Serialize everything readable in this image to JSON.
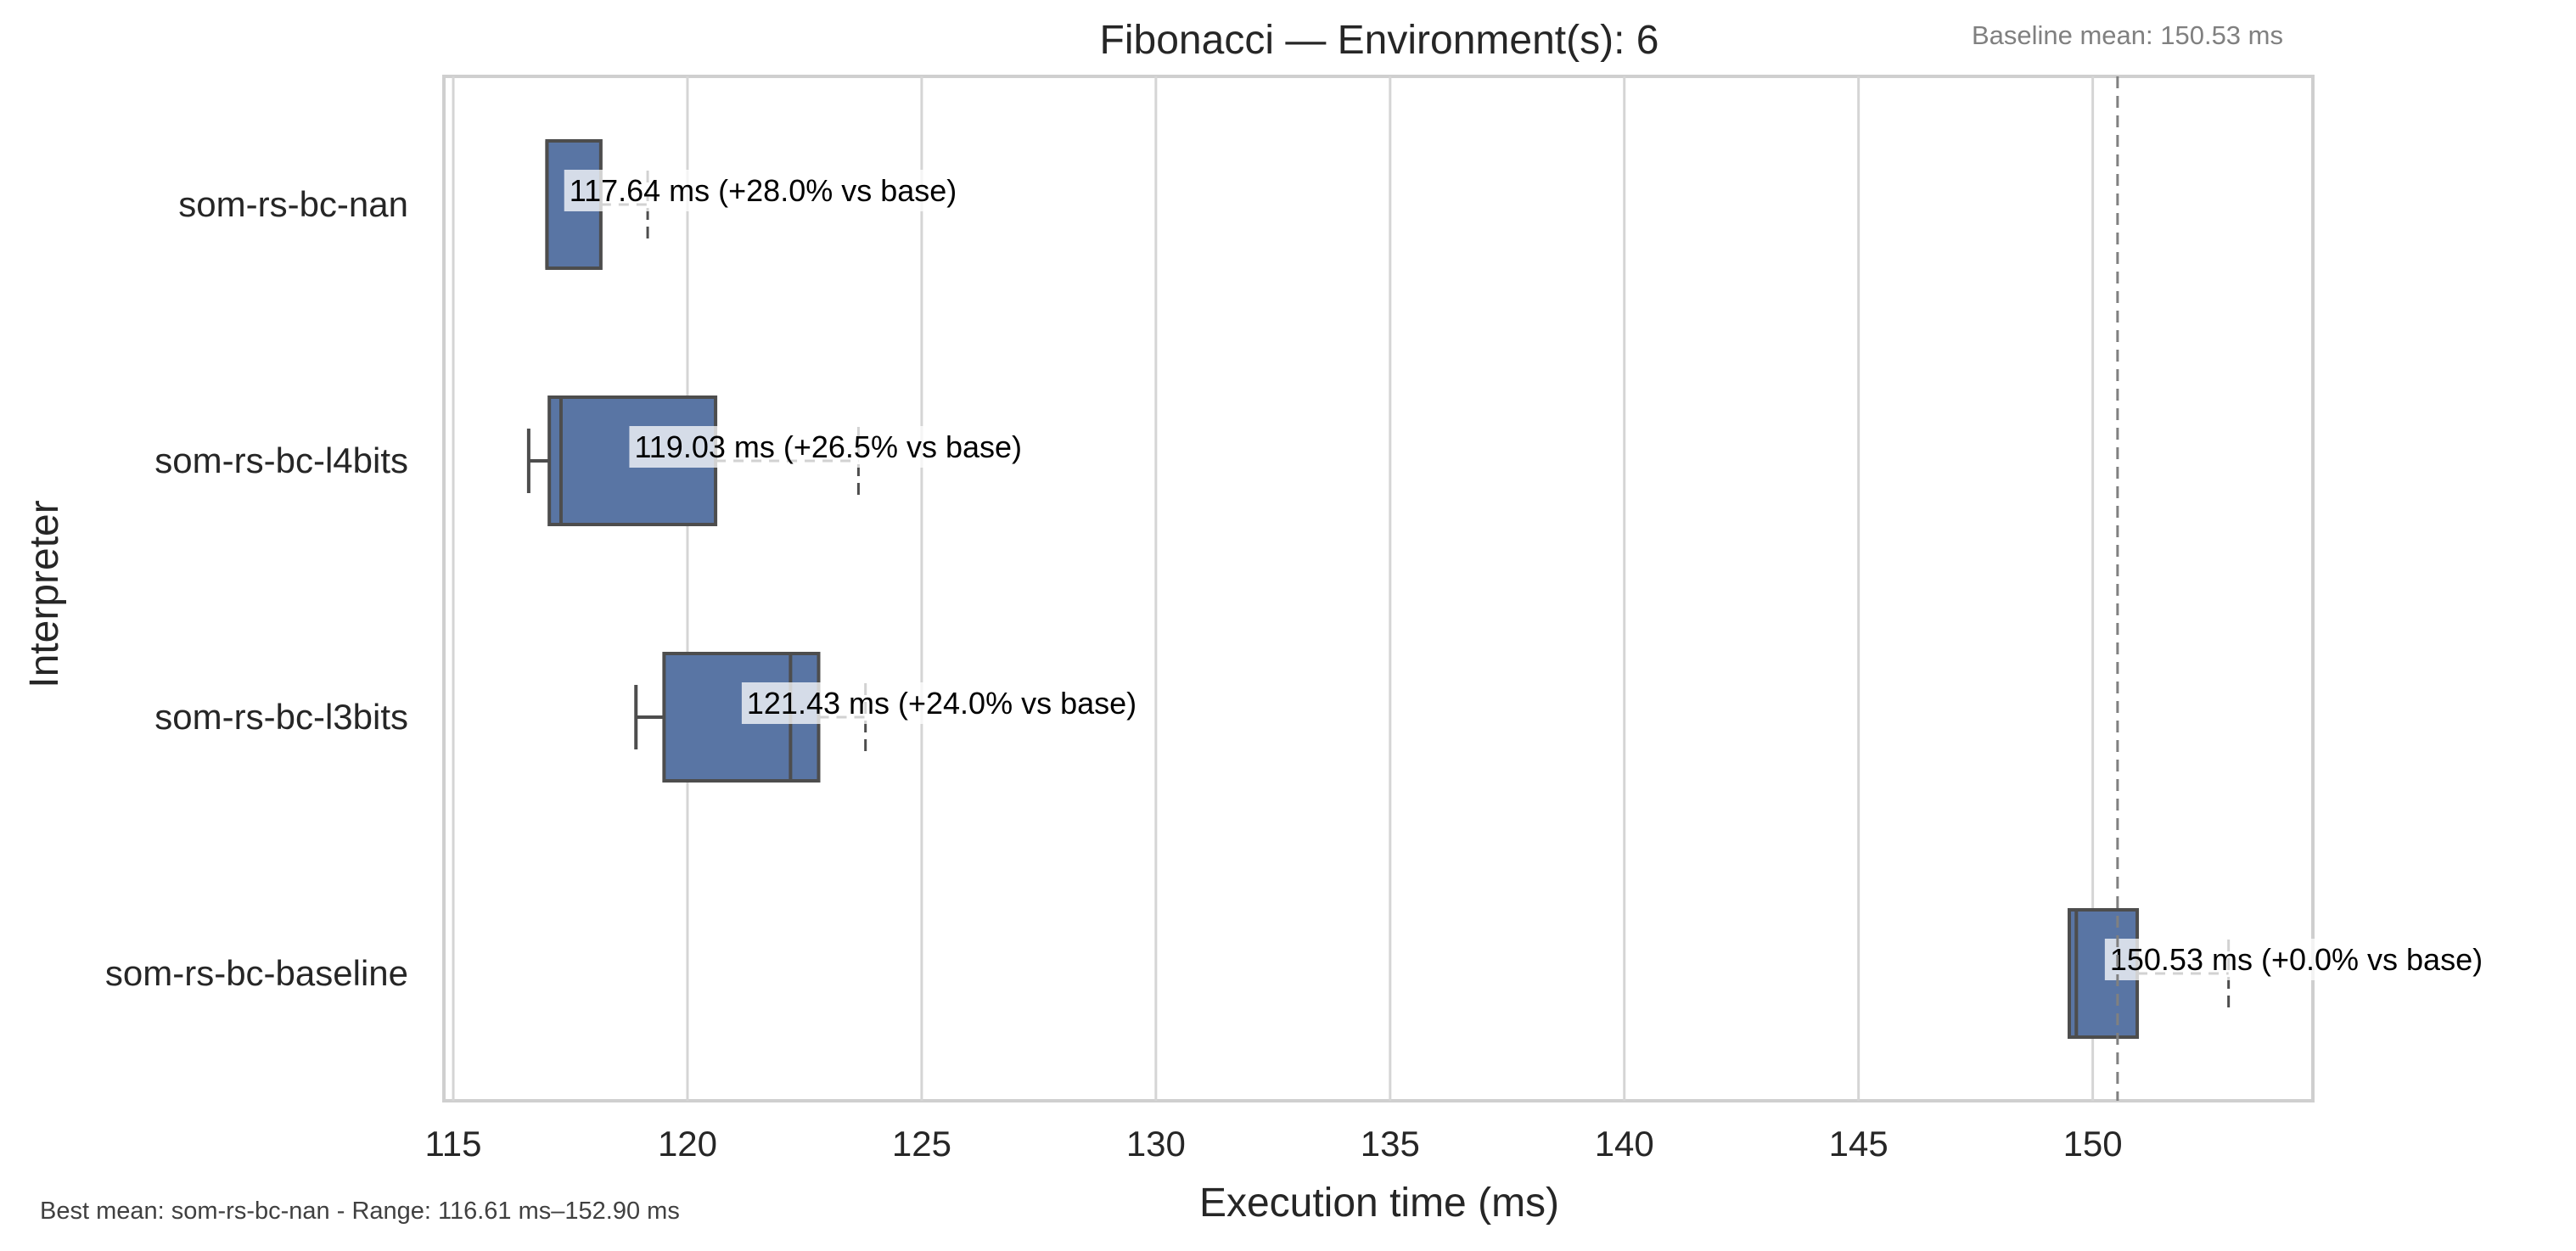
{
  "chart_data": {
    "type": "box",
    "title": "Fibonacci — Environment(s): 6",
    "baseline_note": "Baseline mean: 150.53 ms",
    "footer": "Best mean: som-rs-bc-nan - Range: 116.61 ms–152.90 ms",
    "xlabel": "Execution time (ms)",
    "ylabel": "Interpreter",
    "xlim": [
      114.8,
      154.7
    ],
    "xticks": [
      115,
      120,
      125,
      130,
      135,
      140,
      145,
      150
    ],
    "xtick_labels": [
      "115",
      "120",
      "125",
      "130",
      "135",
      "140",
      "145",
      "150"
    ],
    "grid": true,
    "baseline_mean": 150.53,
    "series": [
      {
        "name": "som-rs-bc-nan",
        "min": 117.0,
        "q1": 117.0,
        "median": 117.0,
        "q3": 118.15,
        "max": 118.15,
        "mean": 117.64,
        "mean_cap": 119.15,
        "annotation": "117.64 ms  (+28.0% vs base)"
      },
      {
        "name": "som-rs-bc-l4bits",
        "min": 116.61,
        "q1": 117.05,
        "median": 117.3,
        "q3": 120.6,
        "max": 120.6,
        "mean": 119.03,
        "mean_cap": 123.65,
        "annotation": "119.03 ms  (+26.5% vs base)"
      },
      {
        "name": "som-rs-bc-l3bits",
        "min": 118.9,
        "q1": 119.5,
        "median": 122.2,
        "q3": 122.8,
        "max": 122.8,
        "mean": 121.43,
        "mean_cap": 123.8,
        "annotation": "121.43 ms  (+24.0% vs base)"
      },
      {
        "name": "som-rs-bc-baseline",
        "min": 149.5,
        "q1": 149.5,
        "median": 149.65,
        "q3": 150.95,
        "max": 150.95,
        "mean": 150.53,
        "mean_cap": 152.9,
        "annotation": "150.53 ms  (+0.0% vs base)"
      }
    ],
    "colors": {
      "box": "#5975a4",
      "edge": "#4d4d4d",
      "grid": "#d5d5d5",
      "baseline_line": "#808080"
    }
  }
}
